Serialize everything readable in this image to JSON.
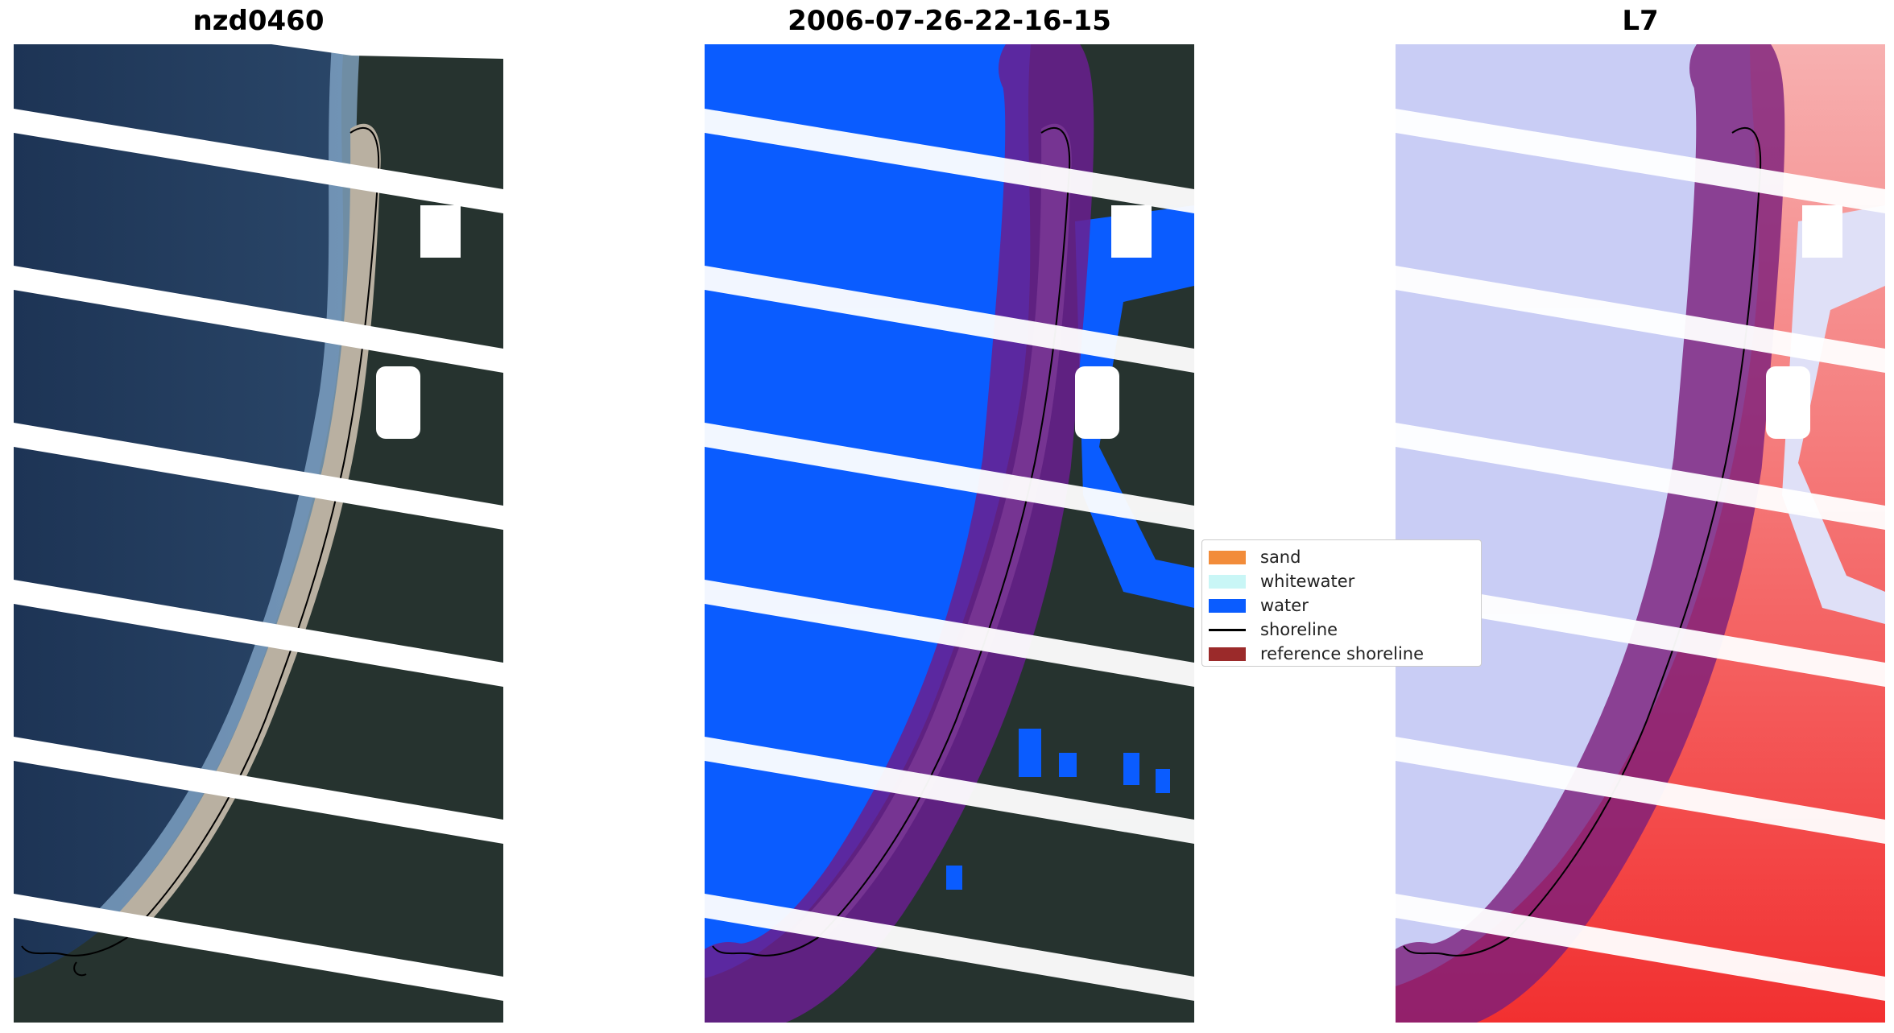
{
  "panels": [
    {
      "title": "nzd0460",
      "type": "rgb"
    },
    {
      "title": "2006-07-26-22-16-15",
      "type": "classification"
    },
    {
      "title": "L7",
      "type": "index"
    }
  ],
  "legend": {
    "items": [
      {
        "label": "sand",
        "kind": "patch",
        "color": "#f28c3a"
      },
      {
        "label": "whitewater",
        "kind": "patch",
        "color": "#c9f6f6"
      },
      {
        "label": "water",
        "kind": "patch",
        "color": "#0a5cff"
      },
      {
        "label": "shoreline",
        "kind": "line",
        "color": "#000000"
      },
      {
        "label": "reference shoreline",
        "kind": "patch",
        "color": "#9b2a2a"
      }
    ]
  },
  "colors": {
    "ocean": "#223a5c",
    "land": "#2a3530",
    "sand": "#b8ae9f",
    "water_class": "#0a5cff",
    "buffer": "#6a1f8f",
    "stripes": "#ffffff",
    "index_water": "#c8ccf4",
    "index_land": "#f26060"
  }
}
